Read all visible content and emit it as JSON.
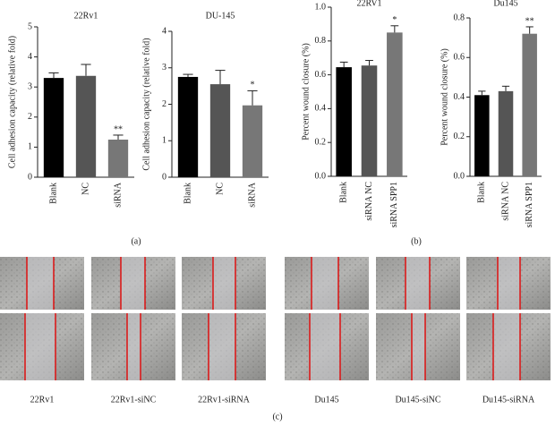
{
  "chart_data": [
    {
      "type": "bar",
      "title": "22Rv1",
      "y_label": "Cell adhesion capacity (relative fold)",
      "categories": [
        "Blank",
        "NC",
        "siRNA"
      ],
      "values": [
        3.3,
        3.37,
        1.25
      ],
      "errors": [
        0.17,
        0.38,
        0.15
      ],
      "colors": [
        "#000000",
        "#555555",
        "#777777"
      ],
      "significance": [
        null,
        null,
        "**"
      ],
      "ylim": [
        0,
        5
      ],
      "yticks": [
        0,
        1,
        2,
        3,
        4,
        5
      ]
    },
    {
      "type": "bar",
      "title": "DU-145",
      "y_label": "Cell adhesion capacity (relative fold)",
      "categories": [
        "Blank",
        "NC",
        "siRNA"
      ],
      "values": [
        2.75,
        2.55,
        1.97
      ],
      "errors": [
        0.07,
        0.38,
        0.4
      ],
      "colors": [
        "#000000",
        "#555555",
        "#777777"
      ],
      "significance": [
        null,
        null,
        "*"
      ],
      "ylim": [
        0,
        4
      ],
      "yticks": [
        0,
        1,
        2,
        3,
        4
      ]
    },
    {
      "type": "bar",
      "title": "22RV1",
      "y_label": "Percent wound closure (%)",
      "categories": [
        "Blank",
        "siRNA NC",
        "siRNA SPP1"
      ],
      "values": [
        0.645,
        0.655,
        0.85
      ],
      "errors": [
        0.03,
        0.03,
        0.04
      ],
      "colors": [
        "#000000",
        "#555555",
        "#777777"
      ],
      "significance": [
        null,
        null,
        "*"
      ],
      "ylim": [
        0,
        1
      ],
      "yticks": [
        {
          "value": 0,
          "label": "0.0"
        },
        0.2,
        0.4,
        0.6,
        0.8,
        {
          "value": 1,
          "label": "1.0"
        }
      ]
    },
    {
      "type": "bar",
      "title": "Du145",
      "y_label": "Percent wound closure (%)",
      "categories": [
        "Blank",
        "siRNA NC",
        "siRNA SPP1"
      ],
      "values": [
        0.41,
        0.43,
        0.72
      ],
      "errors": [
        0.02,
        0.025,
        0.035
      ],
      "colors": [
        "#000000",
        "#555555",
        "#777777"
      ],
      "significance": [
        null,
        null,
        "**"
      ],
      "ylim": [
        0,
        0.8
      ],
      "yticks": [
        {
          "value": 0,
          "label": "0.0"
        },
        0.2,
        0.4,
        0.6,
        0.8
      ]
    }
  ],
  "panel_labels": [
    "(a)",
    "(b)",
    "(c)"
  ],
  "image_captions": [
    "22Rv1",
    "22Rv1-siNC",
    "22Rv1-siRNA",
    "Du145",
    "Du145-siNC",
    "Du145-siRNA"
  ]
}
